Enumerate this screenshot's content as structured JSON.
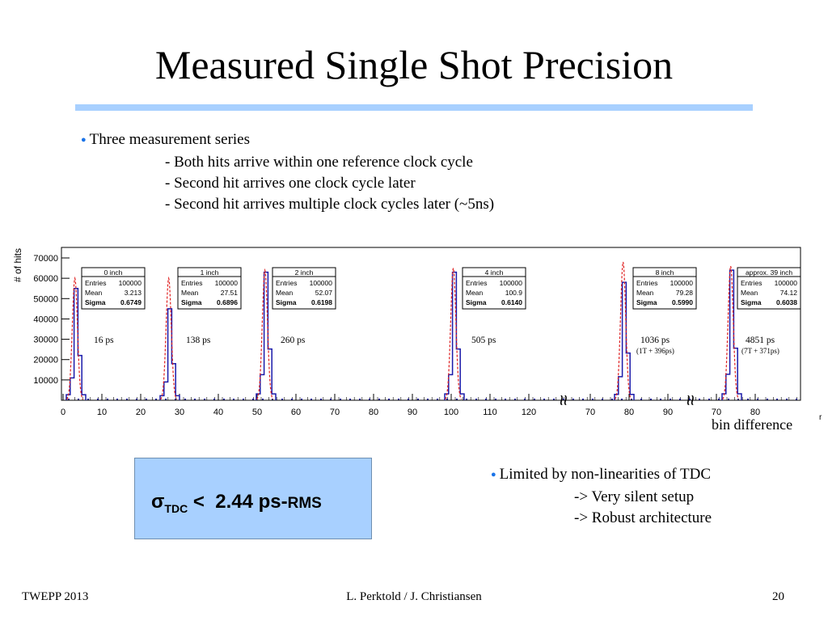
{
  "title": "Measured Single Shot Precision",
  "bullets_top": {
    "main": "Three measurement series",
    "items": [
      "- Both hits arrive within one reference clock cycle",
      "- Second hit arrives one clock cycle later",
      "- Second hit arrives multiple clock cycles later (~5ns)"
    ]
  },
  "x_axis_label": "bin difference",
  "bullets_bottom": {
    "main": "Limited by non-linearities of TDC",
    "items": [
      "-> Very silent setup",
      "-> Robust architecture"
    ]
  },
  "sigma_box": {
    "symbol": "σ",
    "subscript": "TDC",
    "lt": " < ",
    "value": " 2.44 ps-",
    "unit": "RMS"
  },
  "footer": {
    "left": "TWEPP 2013",
    "center": "L. Perktold / J. Christiansen",
    "right": "20"
  },
  "colors": {
    "accent": "#a8d0ff",
    "bullet": "#1a73e8",
    "histogram": "#1a1aaa",
    "fit": "#e02020"
  },
  "chart_data": {
    "type": "histogram",
    "ylabel": "# of hits",
    "xlabel": "bin difference",
    "y_ticks": [
      10000,
      20000,
      30000,
      40000,
      50000,
      60000,
      70000
    ],
    "x_tick_labels": [
      "0",
      "10",
      "20",
      "30",
      "40",
      "50",
      "60",
      "70",
      "80",
      "90",
      "100",
      "110",
      "120",
      "70",
      "80",
      "90",
      "70",
      "80"
    ],
    "peaks": [
      {
        "x": 3,
        "center": 3.213,
        "height": 55000,
        "fit_height": 60000,
        "stat_title": "0 inch",
        "entries": "100000",
        "mean": "3.213",
        "sigma": "0.6749",
        "annotation": "16 ps",
        "annotation2": ""
      },
      {
        "x": 27,
        "center": 27.51,
        "height": 45000,
        "fit_height": 60000,
        "stat_title": "1 inch",
        "entries": "100000",
        "mean": "27.51",
        "sigma": "0.6896",
        "annotation": "138 ps",
        "annotation2": ""
      },
      {
        "x": 52,
        "center": 52.07,
        "height": 63000,
        "fit_height": 64000,
        "stat_title": "2 inch",
        "entries": "100000",
        "mean": "52.07",
        "sigma": "0.6198",
        "annotation": "260 ps",
        "annotation2": ""
      },
      {
        "x": 100,
        "center": 100.9,
        "height": 63000,
        "fit_height": 65000,
        "stat_title": "4 inch",
        "entries": "100000",
        "mean": "100.9",
        "sigma": "0.6140",
        "annotation": "505 ps",
        "annotation2": ""
      },
      {
        "x": 79,
        "center": 79.28,
        "height": 58000,
        "fit_height": 68000,
        "stat_title": "8 inch",
        "entries": "100000",
        "mean": "79.28",
        "sigma": "0.5990",
        "annotation": "1036 ps",
        "annotation2": "(1T + 396ps)"
      },
      {
        "x": 74,
        "center": 74.12,
        "height": 64000,
        "fit_height": 66000,
        "stat_title": "approx. 39 inch",
        "entries": "100000",
        "mean": "74.12",
        "sigma": "0.6038",
        "annotation": "4851 ps",
        "annotation2": "(7T + 371ps)"
      }
    ],
    "stat_labels": {
      "entries": "Entries",
      "mean": "Mean",
      "sigma": "Sigma"
    },
    "break_symbol": "≈",
    "edge_mark": "r"
  }
}
